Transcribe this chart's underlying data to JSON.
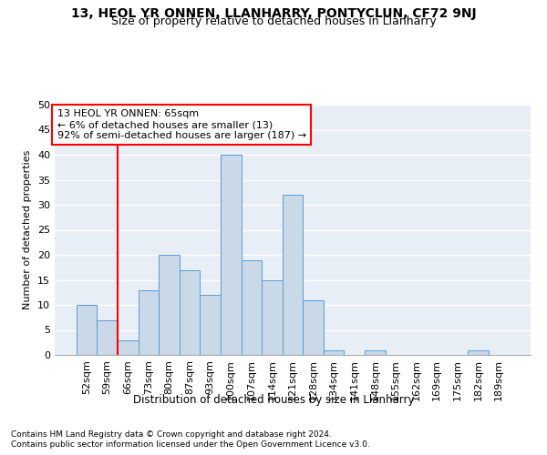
{
  "title1": "13, HEOL YR ONNEN, LLANHARRY, PONTYCLUN, CF72 9NJ",
  "title2": "Size of property relative to detached houses in Llanharry",
  "xlabel": "Distribution of detached houses by size in Llanharry",
  "ylabel": "Number of detached properties",
  "footnote1": "Contains HM Land Registry data © Crown copyright and database right 2024.",
  "footnote2": "Contains public sector information licensed under the Open Government Licence v3.0.",
  "categories": [
    "52sqm",
    "59sqm",
    "66sqm",
    "73sqm",
    "80sqm",
    "87sqm",
    "93sqm",
    "100sqm",
    "107sqm",
    "114sqm",
    "121sqm",
    "128sqm",
    "134sqm",
    "141sqm",
    "148sqm",
    "155sqm",
    "162sqm",
    "169sqm",
    "175sqm",
    "182sqm",
    "189sqm"
  ],
  "values": [
    10,
    7,
    3,
    13,
    20,
    17,
    12,
    40,
    19,
    15,
    32,
    11,
    1,
    0,
    1,
    0,
    0,
    0,
    0,
    1,
    0
  ],
  "bar_color": "#c9d9e8",
  "bar_edge_color": "#5b9bd5",
  "annotation_box_text": [
    "13 HEOL YR ONNEN: 65sqm",
    "← 6% of detached houses are smaller (13)",
    "92% of semi-detached houses are larger (187) →"
  ],
  "annotation_box_color": "white",
  "annotation_box_edge_color": "red",
  "annotation_line_color": "red",
  "ylim": [
    0,
    50
  ],
  "yticks": [
    0,
    5,
    10,
    15,
    20,
    25,
    30,
    35,
    40,
    45,
    50
  ],
  "bg_color": "#e8eef5",
  "grid_color": "white",
  "title1_fontsize": 10,
  "title2_fontsize": 9,
  "annotation_fontsize": 8,
  "axis_fontsize": 8,
  "ylabel_fontsize": 8,
  "xlabel_fontsize": 8.5,
  "footnote_fontsize": 6.5
}
